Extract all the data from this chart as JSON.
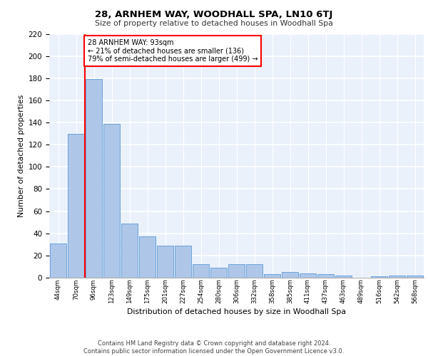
{
  "title1": "28, ARNHEM WAY, WOODHALL SPA, LN10 6TJ",
  "title2": "Size of property relative to detached houses in Woodhall Spa",
  "xlabel": "Distribution of detached houses by size in Woodhall Spa",
  "ylabel": "Number of detached properties",
  "categories": [
    "44sqm",
    "70sqm",
    "96sqm",
    "123sqm",
    "149sqm",
    "175sqm",
    "201sqm",
    "227sqm",
    "254sqm",
    "280sqm",
    "306sqm",
    "332sqm",
    "358sqm",
    "385sqm",
    "411sqm",
    "437sqm",
    "463sqm",
    "489sqm",
    "516sqm",
    "542sqm",
    "568sqm"
  ],
  "values": [
    31,
    130,
    179,
    139,
    49,
    37,
    29,
    29,
    12,
    9,
    12,
    12,
    3,
    5,
    4,
    3,
    2,
    0,
    1,
    2,
    2
  ],
  "bar_color": "#aec6e8",
  "bar_edge_color": "#5b9bd5",
  "vline_x": 1.5,
  "vline_color": "red",
  "annotation_text": "28 ARNHEM WAY: 93sqm\n← 21% of detached houses are smaller (136)\n79% of semi-detached houses are larger (499) →",
  "annotation_box_color": "white",
  "annotation_box_edge": "red",
  "bg_color": "#eaf1fb",
  "grid_color": "white",
  "footer": "Contains HM Land Registry data © Crown copyright and database right 2024.\nContains public sector information licensed under the Open Government Licence v3.0.",
  "ylim": [
    0,
    220
  ],
  "yticks": [
    0,
    20,
    40,
    60,
    80,
    100,
    120,
    140,
    160,
    180,
    200,
    220
  ]
}
